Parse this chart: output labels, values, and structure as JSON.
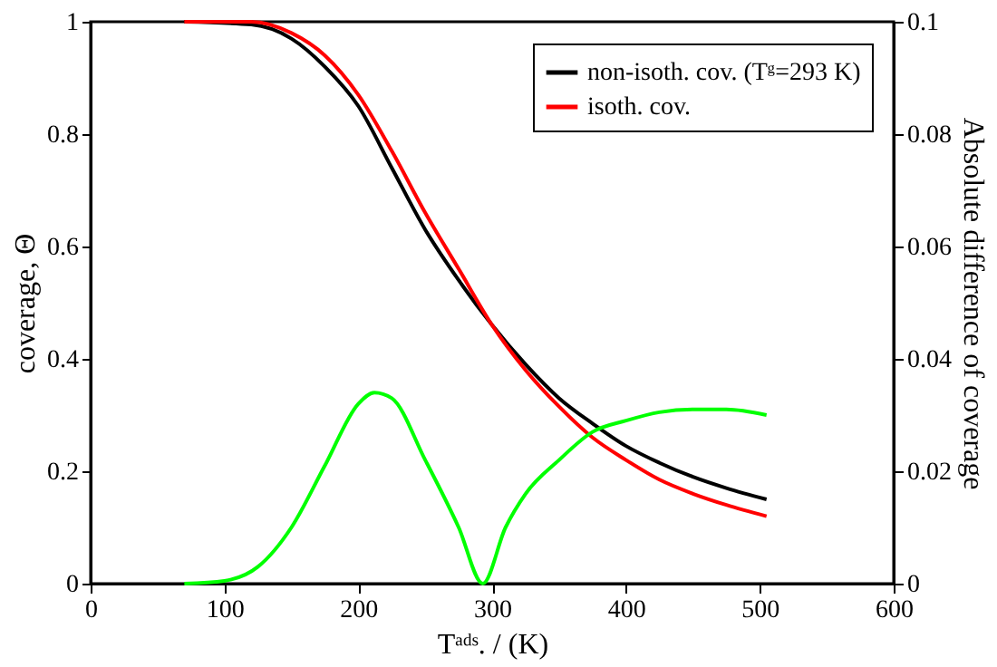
{
  "chart_data": {
    "type": "line",
    "xlabel": "Tᵃᵈˢ. / (K)",
    "ylabel": "coverage, Θ",
    "y2label": "Absolute difference of coverage",
    "xlim": [
      0,
      600
    ],
    "xticks": [
      0,
      100,
      200,
      300,
      400,
      500,
      600
    ],
    "ylim": [
      0,
      1
    ],
    "yticks": [
      0,
      0.2,
      0.4,
      0.6,
      0.8,
      1
    ],
    "y2lim": [
      0,
      0.1
    ],
    "y2ticks": [
      0,
      0.02,
      0.04,
      0.06,
      0.08,
      0.1
    ],
    "grid": false,
    "legend": "top right",
    "marker": "none",
    "line_style": "solid",
    "series": [
      {
        "name": "non-isoth. cov. (Tᵍ=293 K)",
        "color": "#000000",
        "x": [
          70,
          120,
          150,
          175,
          200,
          225,
          250,
          275,
          300,
          325,
          350,
          375,
          400,
          425,
          450,
          475,
          505
        ],
        "values": [
          1,
          0.995,
          0.97,
          0.92,
          0.85,
          0.74,
          0.63,
          0.54,
          0.46,
          0.39,
          0.33,
          0.285,
          0.245,
          0.215,
          0.19,
          0.17,
          0.15
        ]
      },
      {
        "name": "isoth. cov.",
        "color": "#ff0000",
        "x": [
          70,
          120,
          150,
          175,
          200,
          225,
          250,
          275,
          300,
          325,
          350,
          375,
          400,
          425,
          450,
          475,
          505
        ],
        "values": [
          1,
          1,
          0.98,
          0.94,
          0.87,
          0.77,
          0.66,
          0.56,
          0.46,
          0.38,
          0.315,
          0.26,
          0.22,
          0.185,
          0.16,
          0.14,
          0.12
        ]
      },
      {
        "color": "#00ff00",
        "axis": "y2",
        "x": [
          70,
          100,
          125,
          150,
          175,
          200,
          212,
          225,
          250,
          275,
          293,
          310,
          325,
          350,
          375,
          400,
          425,
          450,
          475,
          505
        ],
        "values": [
          0,
          0.0005,
          0.003,
          0.01,
          0.021,
          0.032,
          0.034,
          0.033,
          0.022,
          0.01,
          0,
          0.01,
          0.016,
          0.022,
          0.027,
          0.029,
          0.0305,
          0.031,
          0.031,
          0.03
        ]
      }
    ]
  }
}
